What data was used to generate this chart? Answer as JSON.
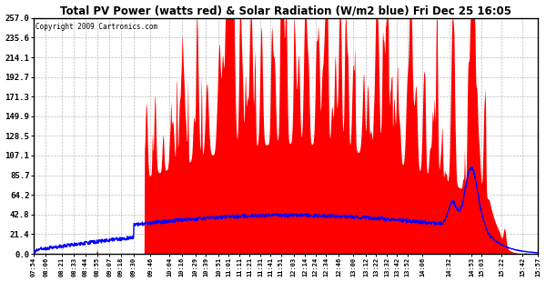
{
  "title": "Total PV Power (watts red) & Solar Radiation (W/m2 blue) Fri Dec 25 16:05",
  "copyright": "Copyright 2009 Cartronics.com",
  "background_color": "#ffffff",
  "plot_bg_color": "#ffffff",
  "grid_color": "#aaaaaa",
  "y_ticks": [
    0.0,
    21.4,
    42.8,
    64.2,
    85.7,
    107.1,
    128.5,
    149.9,
    171.3,
    192.7,
    214.1,
    235.6,
    257.0
  ],
  "y_max": 257.0,
  "x_labels": [
    "07:54",
    "08:06",
    "08:21",
    "08:33",
    "08:44",
    "08:55",
    "09:07",
    "09:18",
    "09:30",
    "09:46",
    "10:04",
    "10:16",
    "10:29",
    "10:39",
    "10:51",
    "11:01",
    "11:11",
    "11:21",
    "11:31",
    "11:41",
    "11:51",
    "12:03",
    "12:14",
    "12:24",
    "12:34",
    "12:46",
    "13:00",
    "13:12",
    "13:22",
    "13:32",
    "13:42",
    "13:52",
    "14:06",
    "14:32",
    "14:53",
    "15:03",
    "15:22",
    "15:42",
    "15:57"
  ]
}
